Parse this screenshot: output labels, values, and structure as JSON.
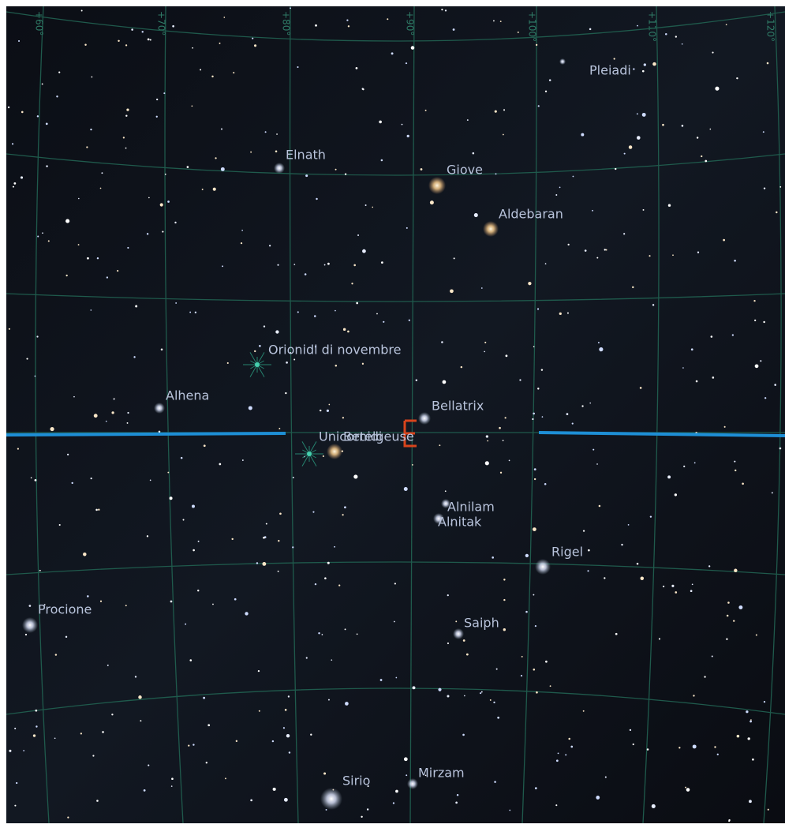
{
  "grid_labels": [
    "+60°",
    "+70°",
    "+80°",
    "+90°",
    "+100°",
    "+110°",
    "+120°"
  ],
  "objects": {
    "pleiadi": "Pleiadi",
    "elnath": "Elnath",
    "giove": "Giove",
    "aldebaran": "Aldebaran",
    "orionidi": "Orionidi di novembre",
    "alhena": "Alhena",
    "bellatrix": "Bellatrix",
    "unicornidi": "Unicornidi",
    "betelgeuse": "Betelgeuse",
    "alnilam": "Alnilam",
    "alnitak": "Alnitak",
    "rigel": "Rigel",
    "procione": "Procione",
    "saiph": "Saiph",
    "sirio": "Sirio",
    "mirzam": "Mirzam"
  }
}
